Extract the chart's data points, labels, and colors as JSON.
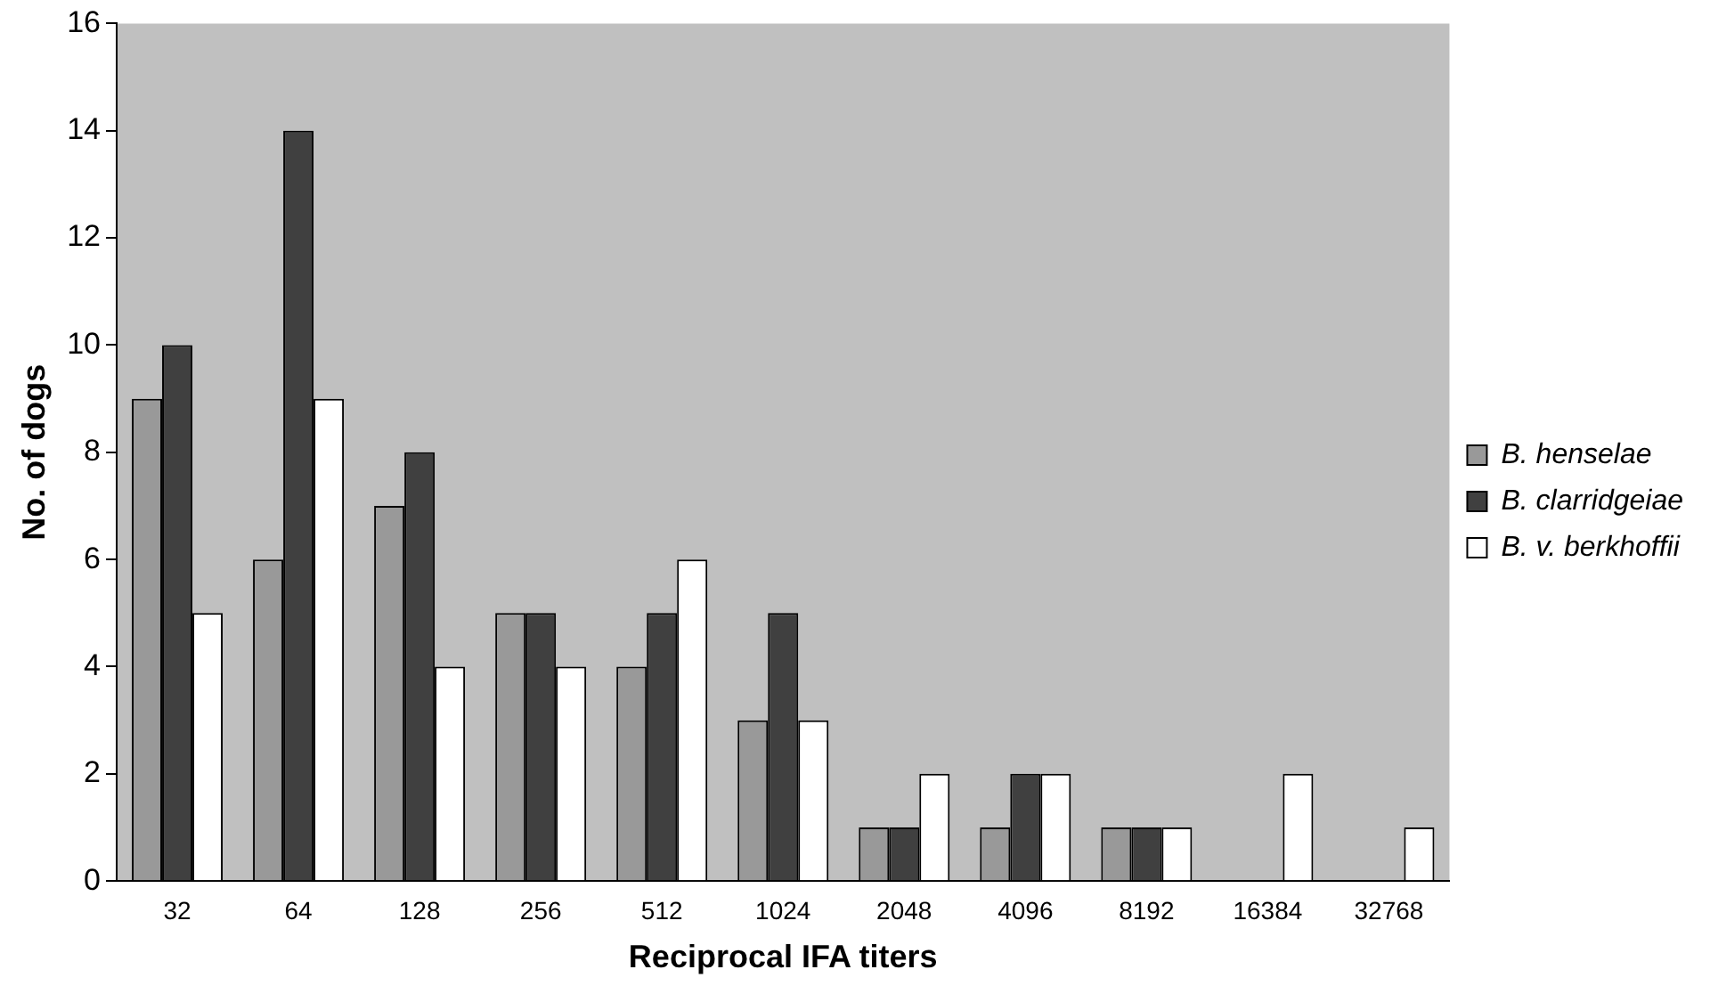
{
  "chart_data": {
    "type": "bar",
    "xlabel": "Reciprocal IFA titers",
    "ylabel": "No. of dogs",
    "categories": [
      "32",
      "64",
      "128",
      "256",
      "512",
      "1024",
      "2048",
      "4096",
      "8192",
      "16384",
      "32768"
    ],
    "series": [
      {
        "name": "B. henselae",
        "color": "#999999",
        "values": [
          9,
          6,
          7,
          5,
          4,
          3,
          1,
          1,
          1,
          0,
          0
        ]
      },
      {
        "name": "B. clarridgeiae",
        "color": "#404040",
        "values": [
          10,
          14,
          8,
          5,
          5,
          5,
          1,
          2,
          1,
          0,
          0
        ]
      },
      {
        "name": "B. v. berkhoffii",
        "color": "#ffffff",
        "values": [
          5,
          9,
          4,
          4,
          6,
          3,
          2,
          2,
          1,
          2,
          1
        ]
      }
    ],
    "ylim": [
      0,
      16
    ],
    "yticks": [
      0,
      2,
      4,
      6,
      8,
      10,
      12,
      14,
      16
    ],
    "grid": false,
    "legend": "right"
  }
}
